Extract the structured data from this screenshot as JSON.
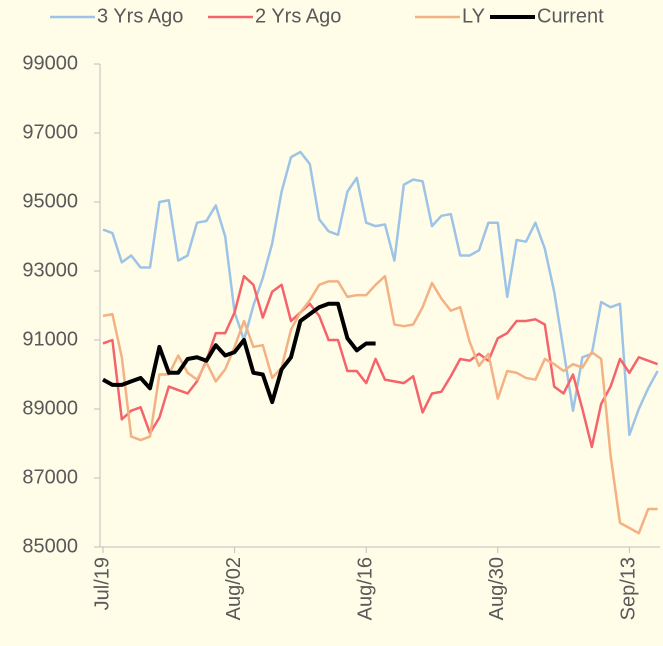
{
  "chart_data": {
    "type": "line",
    "legend": "top",
    "categories": [
      "Jul/19",
      null,
      null,
      null,
      null,
      null,
      null,
      null,
      null,
      null,
      null,
      null,
      null,
      null,
      "Aug/02",
      null,
      null,
      null,
      null,
      null,
      null,
      null,
      null,
      null,
      null,
      null,
      null,
      null,
      "Aug/16",
      null,
      null,
      null,
      null,
      null,
      null,
      null,
      null,
      null,
      null,
      null,
      null,
      null,
      "Aug/30",
      null,
      null,
      null,
      null,
      null,
      null,
      null,
      null,
      null,
      null,
      null,
      null,
      null,
      "Sep/13",
      null,
      null,
      null
    ],
    "ylim": [
      85000,
      99000
    ],
    "yticks": [
      85000,
      87000,
      89000,
      91000,
      93000,
      95000,
      97000,
      99000
    ],
    "series": [
      {
        "name": "3 Yrs Ago",
        "color": "#9dc3e6",
        "width": 2.5,
        "values": [
          94200,
          94100,
          93250,
          93450,
          93100,
          93100,
          95000,
          95050,
          93300,
          93450,
          94400,
          94450,
          94900,
          94000,
          91800,
          91000,
          92000,
          92800,
          93800,
          95300,
          96300,
          96450,
          96100,
          94500,
          94150,
          94050,
          95300,
          95700,
          94400,
          94300,
          94350,
          93300,
          95500,
          95650,
          95600,
          94300,
          94600,
          94650,
          93450,
          93450,
          93600,
          94400,
          94400,
          92250,
          93900,
          93850,
          94400,
          93650,
          92400,
          90700,
          88950,
          90500,
          90600,
          92100,
          91950,
          92050,
          88250,
          89000,
          89600,
          90100
        ]
      },
      {
        "name": "2 Yrs Ago",
        "color": "#f4646a",
        "width": 2.5,
        "values": [
          90900,
          91000,
          88700,
          88950,
          89050,
          88300,
          88750,
          89650,
          89550,
          89450,
          89800,
          90400,
          91200,
          91200,
          91800,
          92850,
          92600,
          91650,
          92400,
          92600,
          91550,
          91800,
          92050,
          91700,
          91000,
          91000,
          90100,
          90100,
          89750,
          90450,
          89850,
          89800,
          89750,
          89950,
          88900,
          89450,
          89500,
          89950,
          90450,
          90400,
          90600,
          90400,
          91050,
          91200,
          91550,
          91550,
          91600,
          91450,
          89650,
          89450,
          90000,
          89000,
          87900,
          89150,
          89650,
          90450,
          90050,
          90500,
          90400,
          90300
        ]
      },
      {
        "name": "LY",
        "color": "#f4b183",
        "width": 2.5,
        "values": [
          91700,
          91750,
          90500,
          88200,
          88100,
          88200,
          90000,
          90000,
          90550,
          90050,
          89850,
          90350,
          89800,
          90150,
          90800,
          91550,
          90800,
          90850,
          89900,
          90200,
          91300,
          91800,
          92150,
          92600,
          92700,
          92700,
          92250,
          92300,
          92300,
          92600,
          92850,
          91450,
          91400,
          91450,
          91950,
          92650,
          92200,
          91850,
          91950,
          90950,
          90250,
          90600,
          89300,
          90100,
          90050,
          89900,
          89850,
          90450,
          90300,
          90100,
          90300,
          90200,
          90650,
          90450,
          87650,
          85700,
          85550,
          85400,
          86100,
          86100
        ]
      },
      {
        "name": "Current",
        "color": "#000000",
        "width": 4,
        "values": [
          89850,
          89700,
          89700,
          89800,
          89900,
          89600,
          90800,
          90050,
          90050,
          90450,
          90500,
          90400,
          90850,
          90550,
          90650,
          91000,
          90050,
          90000,
          89200,
          90150,
          90500,
          91550,
          91750,
          91950,
          92050,
          92050,
          91050,
          90700,
          90900,
          90900,
          null,
          null,
          null,
          null,
          null,
          null,
          null,
          null,
          null,
          null,
          null,
          null,
          null,
          null,
          null,
          null,
          null,
          null,
          null,
          null,
          null,
          null,
          null,
          null,
          null,
          null,
          null,
          null,
          null,
          null
        ]
      }
    ]
  }
}
